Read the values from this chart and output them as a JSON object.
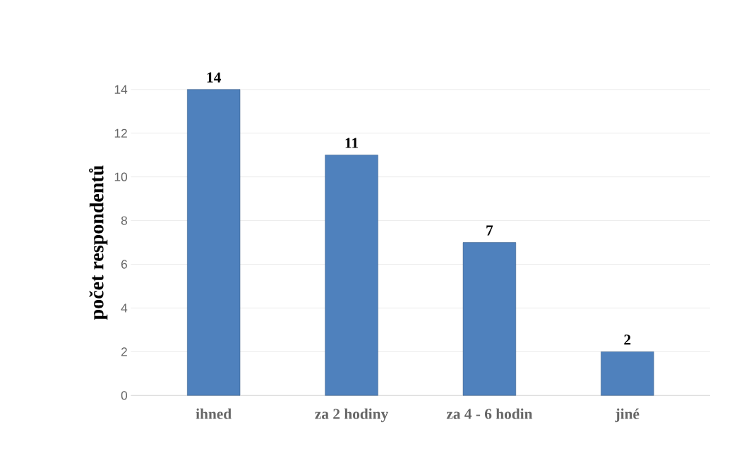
{
  "chart_data": {
    "type": "bar",
    "ylabel": "počet respondentů",
    "categories": [
      "ihned",
      "za 2 hodiny",
      "za 4 - 6 hodin",
      "jiné"
    ],
    "values": [
      14,
      11,
      7,
      2
    ],
    "color": "#4f81bd",
    "ylim": [
      0,
      14
    ],
    "yticks": [
      0,
      2,
      4,
      6,
      8,
      10,
      12,
      14
    ],
    "grid": "y",
    "data_labels": true
  }
}
